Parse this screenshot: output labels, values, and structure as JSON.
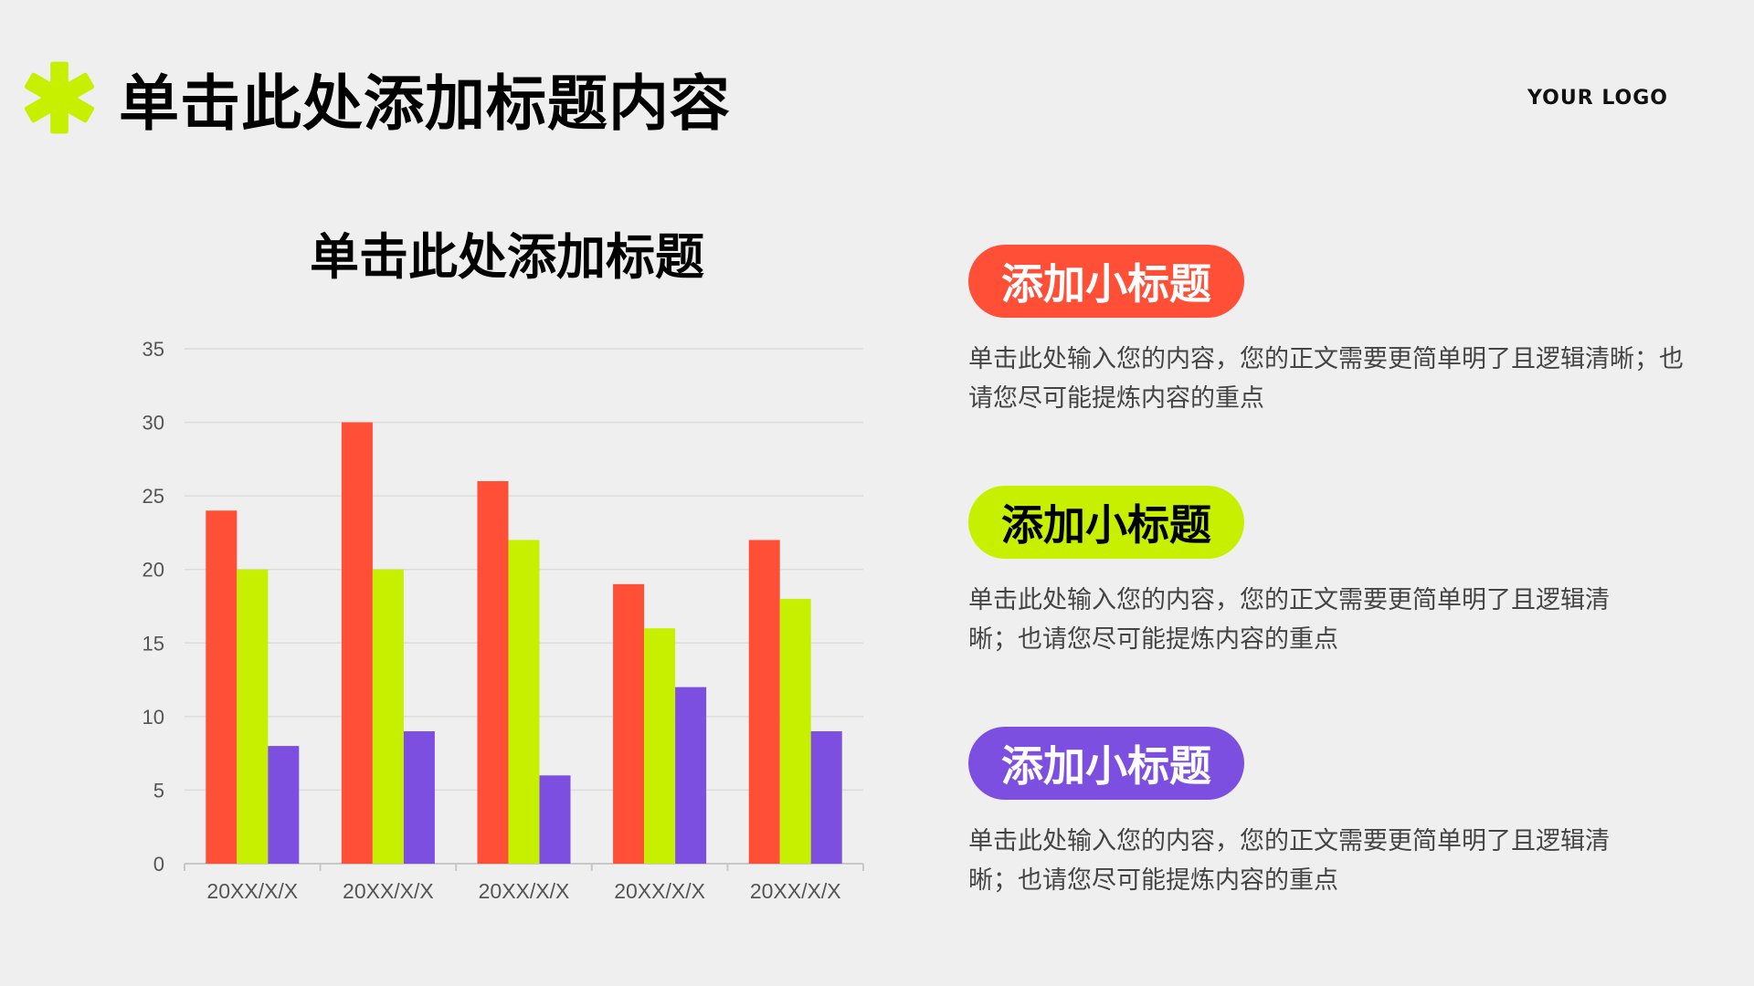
{
  "header": {
    "title": "单击此处添加标题内容",
    "logo_text": "YOUR LOGO",
    "mark_icon": "asterisk-icon",
    "mark_color": "#c6f000"
  },
  "colors": {
    "series_red": "#ff4f37",
    "series_green": "#c6f000",
    "series_purple": "#7d4fe0",
    "background": "#efefef"
  },
  "sections": [
    {
      "pill_label": "添加小标题",
      "pill_color": "#ff4f37",
      "pill_text_color": "#ffffff",
      "body": "单击此处输入您的内容，您的正文需要更简单明了且逻辑清晰；也请您尽可能提炼内容的重点"
    },
    {
      "pill_label": "添加小标题",
      "pill_color": "#c6f000",
      "pill_text_color": "#000000",
      "body": "单击此处输入您的内容，您的正文需要更简单明了且逻辑清晰；也请您尽可能提炼内容的重点"
    },
    {
      "pill_label": "添加小标题",
      "pill_color": "#7d4fe0",
      "pill_text_color": "#ffffff",
      "body": "单击此处输入您的内容，您的正文需要更简单明了且逻辑清晰；也请您尽可能提炼内容的重点"
    }
  ],
  "chart_data": {
    "type": "bar",
    "title": "单击此处添加标题",
    "xlabel": "",
    "ylabel": "",
    "categories": [
      "20XX/X/X",
      "20XX/X/X",
      "20XX/X/X",
      "20XX/X/X",
      "20XX/X/X"
    ],
    "series": [
      {
        "color": "#ff4f37",
        "values": [
          24,
          30,
          26,
          19,
          22
        ]
      },
      {
        "color": "#c6f000",
        "values": [
          20,
          20,
          22,
          16,
          18
        ]
      },
      {
        "color": "#7d4fe0",
        "values": [
          8,
          9,
          6,
          12,
          9
        ]
      }
    ],
    "ylim": [
      0,
      35
    ],
    "yticks": [
      0,
      5,
      10,
      15,
      20,
      25,
      30,
      35
    ],
    "grid": true,
    "legend": "none"
  }
}
